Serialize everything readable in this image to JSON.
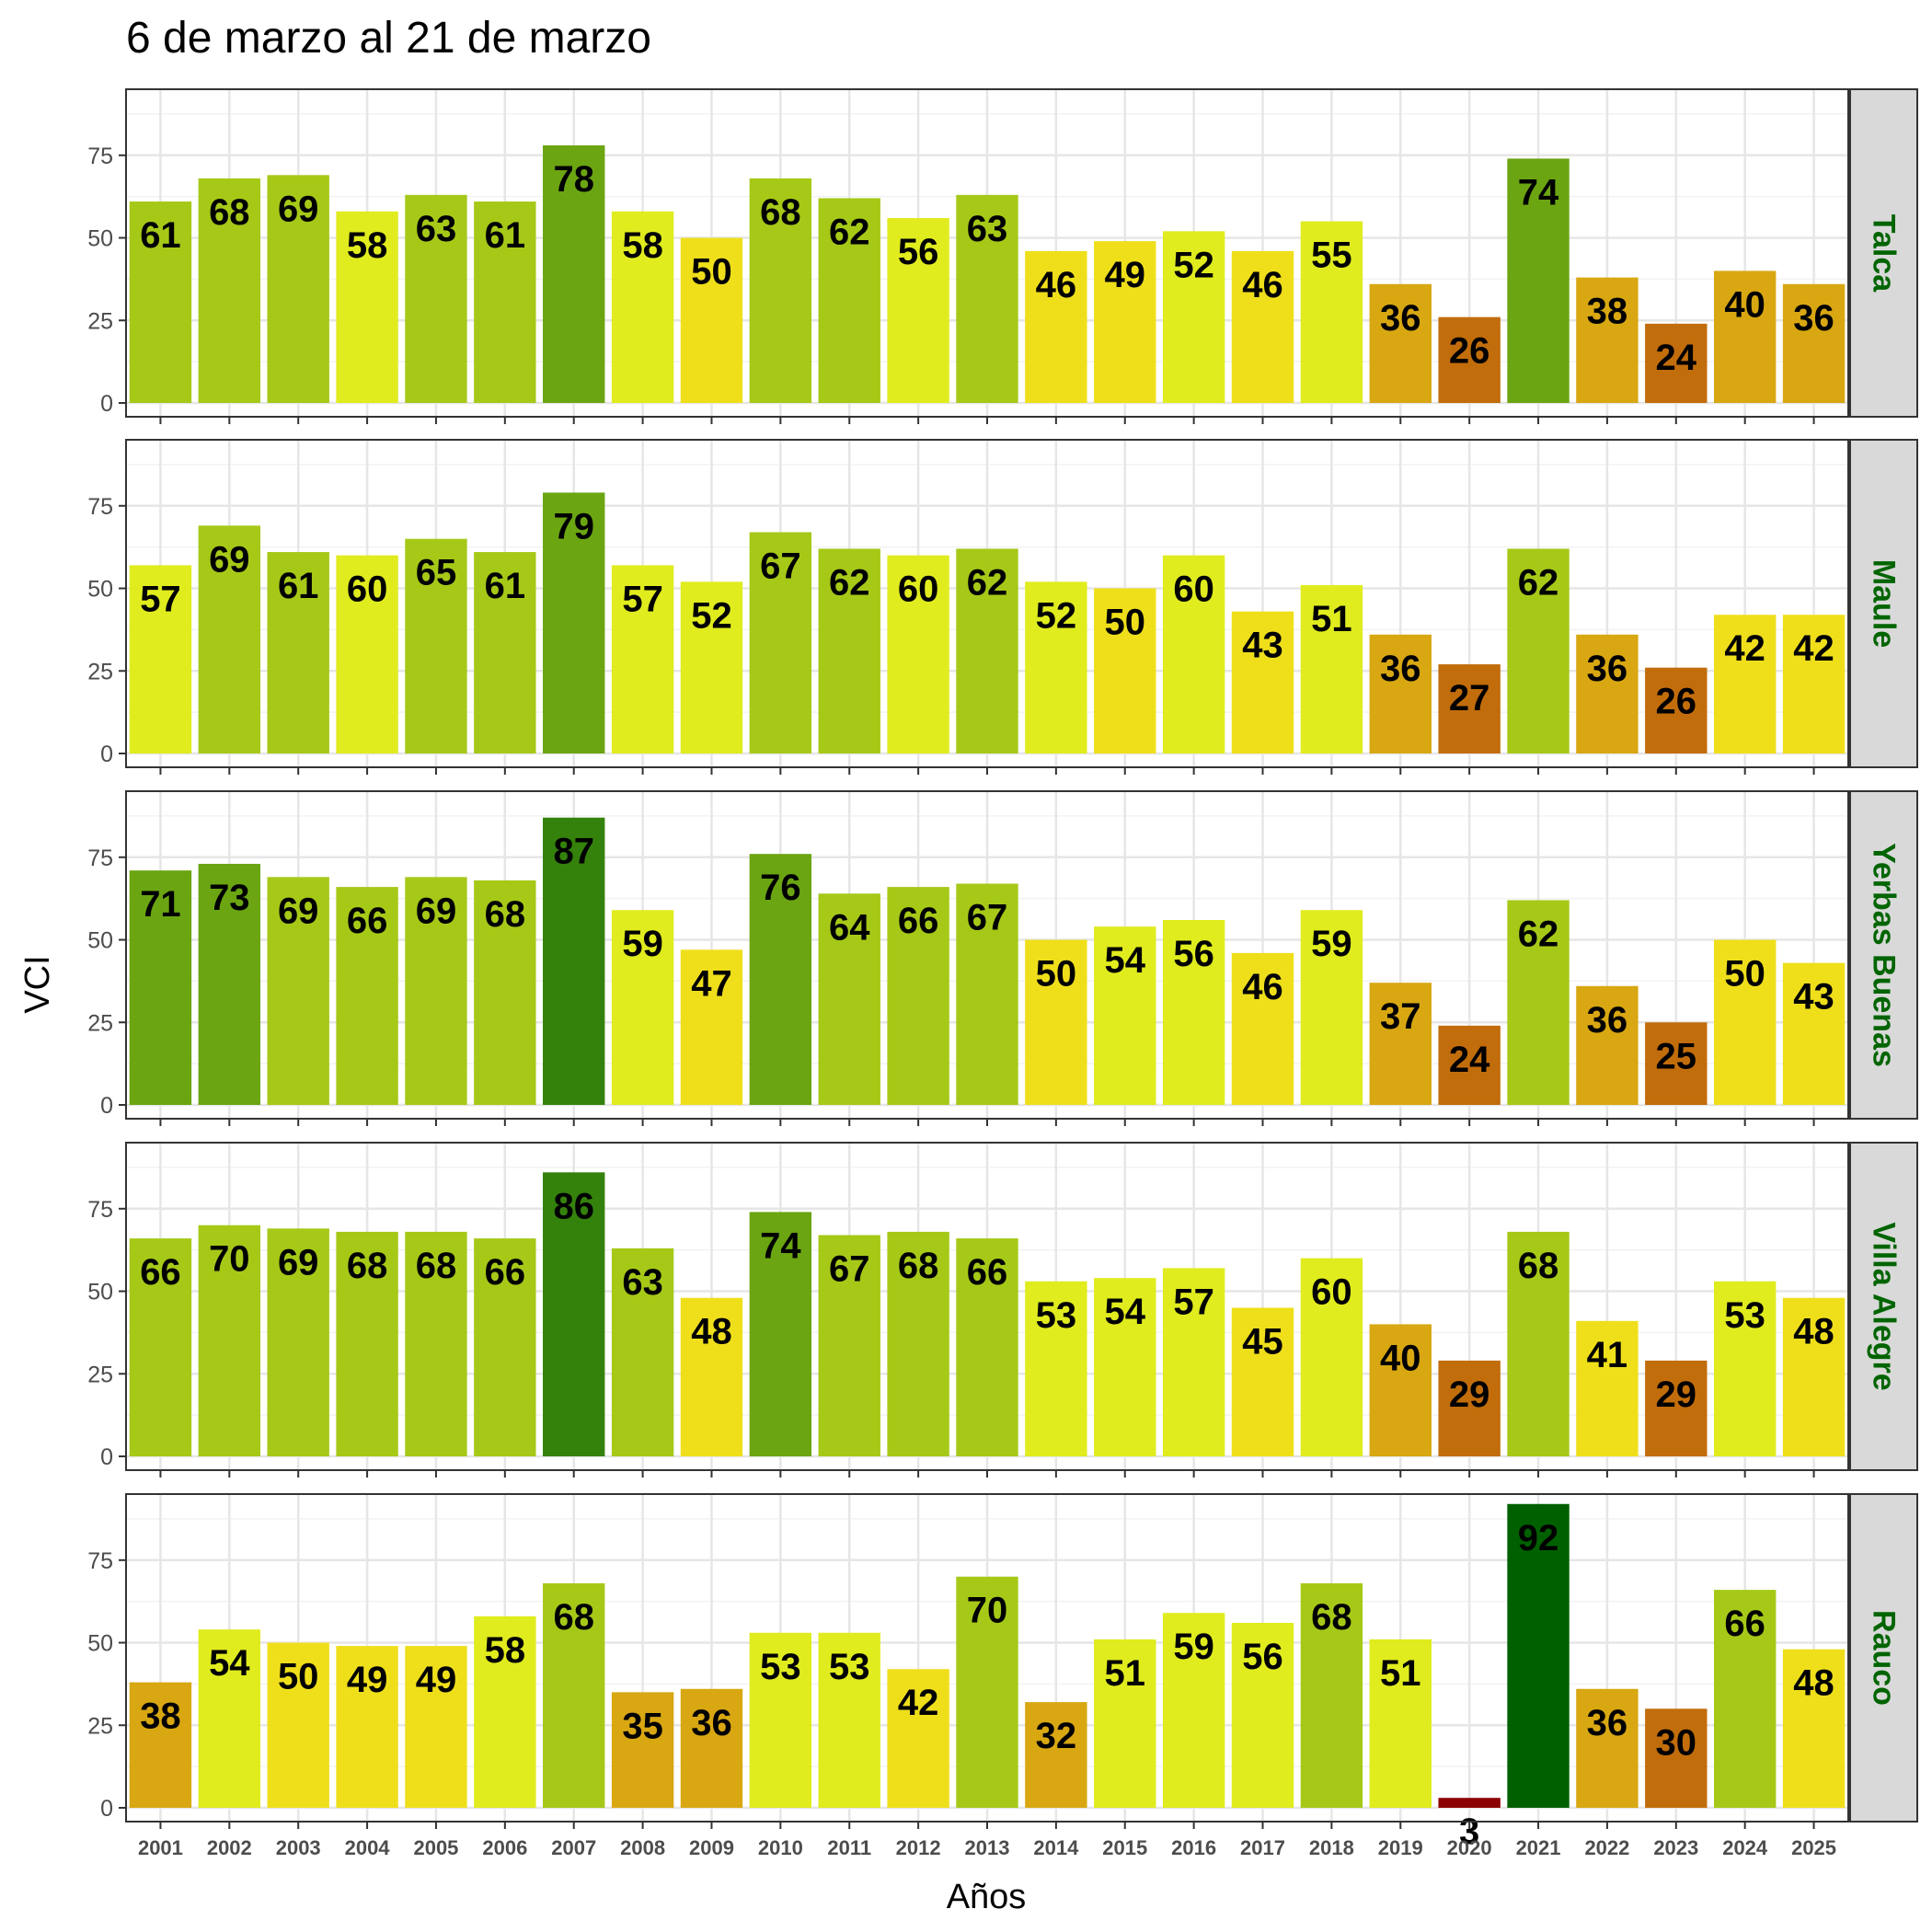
{
  "chart_data": {
    "type": "bar",
    "title": "6 de marzo al 21 de marzo",
    "xlabel": "Años",
    "ylabel": "VCI",
    "ylim": [
      0,
      95
    ],
    "yticks": [
      0,
      25,
      50,
      75
    ],
    "categories": [
      "2001",
      "2002",
      "2003",
      "2004",
      "2005",
      "2006",
      "2007",
      "2008",
      "2009",
      "2010",
      "2011",
      "2012",
      "2013",
      "2014",
      "2015",
      "2016",
      "2017",
      "2018",
      "2019",
      "2020",
      "2021",
      "2022",
      "2023",
      "2024",
      "2025"
    ],
    "strip_color": "#006400",
    "color_scale": [
      {
        "max": 10,
        "color": "#8B0000"
      },
      {
        "max": 30,
        "color": "#C26D0B"
      },
      {
        "max": 40,
        "color": "#D8A712"
      },
      {
        "max": 50,
        "color": "#EFDF1B"
      },
      {
        "max": 60,
        "color": "#E0EC1E"
      },
      {
        "max": 70,
        "color": "#A6C918"
      },
      {
        "max": 80,
        "color": "#6BA512"
      },
      {
        "max": 90,
        "color": "#34820C"
      },
      {
        "max": 100,
        "color": "#006000"
      }
    ],
    "series": [
      {
        "name": "Talca",
        "values": [
          61,
          68,
          69,
          58,
          63,
          61,
          78,
          58,
          50,
          68,
          62,
          56,
          63,
          46,
          49,
          52,
          46,
          55,
          36,
          26,
          74,
          38,
          24,
          40,
          36
        ]
      },
      {
        "name": "Maule",
        "values": [
          57,
          69,
          61,
          60,
          65,
          61,
          79,
          57,
          52,
          67,
          62,
          60,
          62,
          52,
          50,
          60,
          43,
          51,
          36,
          27,
          62,
          36,
          26,
          42,
          42
        ]
      },
      {
        "name": "Yerbas Buenas",
        "values": [
          71,
          73,
          69,
          66,
          69,
          68,
          87,
          59,
          47,
          76,
          64,
          66,
          67,
          50,
          54,
          56,
          46,
          59,
          37,
          24,
          62,
          36,
          25,
          50,
          43
        ]
      },
      {
        "name": "Villa Alegre",
        "values": [
          66,
          70,
          69,
          68,
          68,
          66,
          86,
          63,
          48,
          74,
          67,
          68,
          66,
          53,
          54,
          57,
          45,
          60,
          40,
          29,
          68,
          41,
          29,
          53,
          48
        ]
      },
      {
        "name": "Rauco",
        "values": [
          38,
          54,
          50,
          49,
          49,
          58,
          68,
          35,
          36,
          53,
          53,
          42,
          70,
          32,
          51,
          59,
          56,
          68,
          51,
          3,
          92,
          36,
          30,
          66,
          48
        ]
      }
    ]
  }
}
